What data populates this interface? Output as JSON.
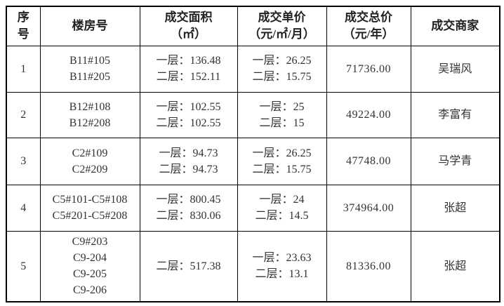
{
  "table": {
    "headers": [
      {
        "id": "serial",
        "lines": [
          "序",
          "号"
        ]
      },
      {
        "id": "building",
        "lines": [
          "楼房号"
        ]
      },
      {
        "id": "area",
        "lines": [
          "成交面积",
          "（㎡）"
        ]
      },
      {
        "id": "unit-price",
        "lines": [
          "成交单价",
          "（元/㎡/月）"
        ]
      },
      {
        "id": "total-price",
        "lines": [
          "成交总价",
          "（元/年）"
        ]
      },
      {
        "id": "merchant",
        "lines": [
          "成交商家"
        ]
      }
    ],
    "rows": [
      {
        "index": "1",
        "building": [
          "B11#105",
          "B11#205"
        ],
        "area": [
          "一层：136.48",
          "二层：152.11"
        ],
        "unit_price": [
          "一层：26.25",
          "二层：15.75"
        ],
        "total_price": "71736.00",
        "merchant": "吴瑞风"
      },
      {
        "index": "2",
        "building": [
          "B12#108",
          "B12#208"
        ],
        "area": [
          "一层：102.55",
          "二层：102.55"
        ],
        "unit_price": [
          "一层：25",
          "二层：15"
        ],
        "total_price": "49224.00",
        "merchant": "李富有"
      },
      {
        "index": "3",
        "building": [
          "C2#109",
          "C2#209"
        ],
        "area": [
          "一层：94.73",
          "二层：94.73"
        ],
        "unit_price": [
          "一层：26.25",
          "二层：15.75"
        ],
        "total_price": "47748.00",
        "merchant": "马学青"
      },
      {
        "index": "4",
        "building": [
          "C5#101-C5#108",
          "C5#201-C5#208"
        ],
        "area": [
          "一层：800.45",
          "二层：830.06"
        ],
        "unit_price": [
          "一层：24",
          "二层：14.5"
        ],
        "total_price": "374964.00",
        "merchant": "张超"
      },
      {
        "index": "5",
        "building": [
          "C9#203",
          "C9-204",
          "C9-205",
          "C9-206"
        ],
        "area": [
          "二层：517.38"
        ],
        "unit_price": [
          "一层：23.63",
          "二层：13.1"
        ],
        "total_price": "81336.00",
        "merchant": "张超"
      }
    ]
  }
}
